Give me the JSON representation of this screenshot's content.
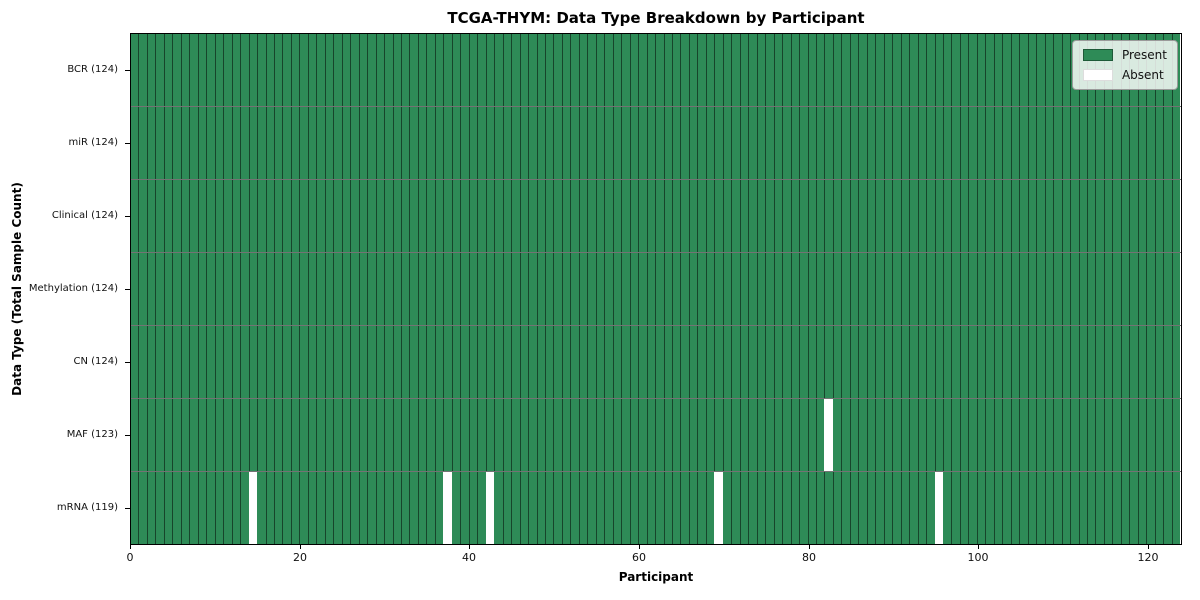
{
  "title": "TCGA-THYM: Data Type Breakdown by Participant",
  "axes": {
    "xlabel": "Participant",
    "ylabel": "Data Type (Total Sample Count)"
  },
  "legend": {
    "entries": [
      {
        "label": "Present",
        "color": "#2e8b57"
      },
      {
        "label": "Absent",
        "color": "#ffffff"
      }
    ]
  },
  "chart_data": {
    "type": "heatmap",
    "title": "TCGA-THYM: Data Type Breakdown by Participant",
    "xlabel": "Participant",
    "ylabel": "Data Type (Total Sample Count)",
    "n_participants": 124,
    "xlim": [
      0,
      124
    ],
    "x_ticks": [
      0,
      20,
      40,
      60,
      80,
      100,
      120
    ],
    "legend_position": "upper right",
    "grid": true,
    "colors": {
      "present": "#2e8b57",
      "absent": "#ffffff",
      "cell_edge": "rgba(0,0,0,0.50)",
      "row_edge": "rgba(0,0,0,0.55)"
    },
    "rows": [
      {
        "label": "BCR (124)",
        "data_type": "BCR",
        "present_count": 124,
        "absent_participants": []
      },
      {
        "label": "miR (124)",
        "data_type": "miR",
        "present_count": 124,
        "absent_participants": []
      },
      {
        "label": "Clinical (124)",
        "data_type": "Clinical",
        "present_count": 124,
        "absent_participants": []
      },
      {
        "label": "Methylation (124)",
        "data_type": "Methylation",
        "present_count": 124,
        "absent_participants": []
      },
      {
        "label": "CN (124)",
        "data_type": "CN",
        "present_count": 124,
        "absent_participants": []
      },
      {
        "label": "MAF (123)",
        "data_type": "MAF",
        "present_count": 123,
        "absent_participants": [
          82
        ]
      },
      {
        "label": "mRNA (119)",
        "data_type": "mRNA",
        "present_count": 119,
        "absent_participants": [
          14,
          37,
          42,
          69,
          95
        ]
      }
    ]
  }
}
